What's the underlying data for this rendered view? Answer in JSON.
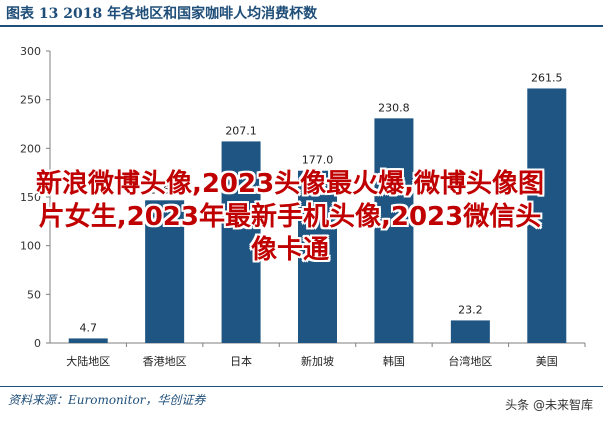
{
  "header": {
    "title": "图表 13    2018 年各地区和国家咖啡人均消费杯数"
  },
  "source": "资料来源：Euromonitor，华创证券",
  "watermark": {
    "brand": "头条 @未来智库",
    "overlay_text": "新浪微博头像,2023头像最火爆,微博头像图片女生,2023年最新手机头像,2023微信头像卡通"
  },
  "chart_data": {
    "type": "bar",
    "categories": [
      "大陆地区",
      "香港地区",
      "日本",
      "新加坡",
      "韩国",
      "台湾地区",
      "美国"
    ],
    "values": [
      4.7,
      146.6,
      207.1,
      177.0,
      230.8,
      23.2,
      261.5
    ],
    "value_labels": [
      "4.7",
      "146.6",
      "207.1",
      "177.0",
      "230.8",
      "23.2",
      "261.5"
    ],
    "ylim": [
      0,
      300
    ],
    "yticks": [
      0,
      50,
      100,
      150,
      200,
      250,
      300
    ],
    "grid": false,
    "bar_color": "#1f5582",
    "axis_color": "#7f7f7f"
  }
}
